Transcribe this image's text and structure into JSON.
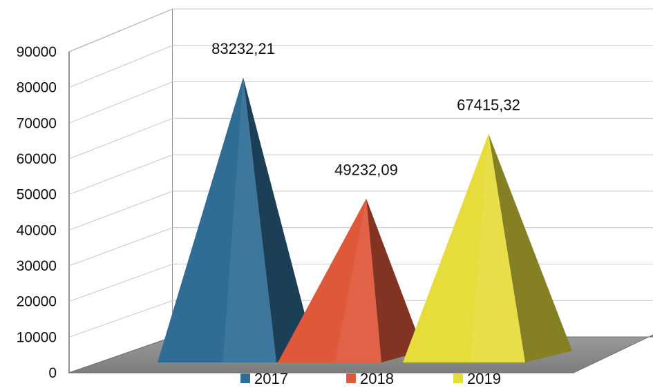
{
  "chart_data": {
    "type": "bar",
    "shape": "3d-pyramid",
    "categories": [
      "2017",
      "2018",
      "2019"
    ],
    "values": [
      83232.21,
      49232.09,
      67415.32
    ],
    "data_labels": [
      "83232,21",
      "49232,09",
      "67415,32"
    ],
    "colors": [
      "#2f6d94",
      "#e0583a",
      "#e6dc3c"
    ],
    "title": "",
    "xlabel": "",
    "ylabel": "",
    "ylim": [
      0,
      90000
    ],
    "yticks": [
      0,
      10000,
      20000,
      30000,
      40000,
      50000,
      60000,
      70000,
      80000,
      90000
    ],
    "ytick_labels": [
      "0",
      "10000",
      "20000",
      "30000",
      "40000",
      "50000",
      "60000",
      "70000",
      "80000",
      "90000"
    ],
    "grid": true,
    "legend": {
      "position": "bottom",
      "entries": [
        "2017",
        "2018",
        "2019"
      ]
    }
  }
}
